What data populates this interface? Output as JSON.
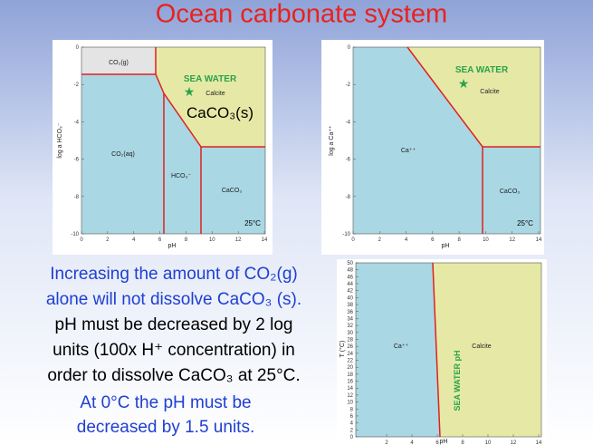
{
  "title": "Ocean carbonate system",
  "panel1": {
    "y_label": "log a HCO₃⁻",
    "x_label": "pH",
    "yticks": [
      0,
      -2,
      -4,
      -6,
      -8,
      -10
    ],
    "xticks": [
      0,
      2,
      4,
      6,
      8,
      10,
      12,
      14
    ],
    "regions": {
      "gas": "CO₂(g)",
      "aq": "CO₂(aq)",
      "bicarbonate": "HCO₃⁻",
      "carbonate": "CaCO₃",
      "calcite": "Calcite"
    },
    "sea_water": "SEA WATER",
    "solid_label": "CaCO₃(s)",
    "temperature": "25°C"
  },
  "panel2": {
    "y_label": "log a Ca⁺⁺",
    "x_label": "pH",
    "yticks": [
      0,
      -2,
      -4,
      -6,
      -8,
      -10
    ],
    "xticks": [
      0,
      2,
      4,
      6,
      8,
      10,
      12,
      14
    ],
    "regions": {
      "ion": "Ca⁺⁺",
      "carbonate": "CaCO₃",
      "calcite": "Calcite"
    },
    "sea_water": "SEA WATER",
    "temperature": "25°C"
  },
  "panel3": {
    "y_label": "T (°C)",
    "x_label": "pH",
    "yticks": [
      50,
      48,
      46,
      44,
      42,
      40,
      38,
      36,
      34,
      32,
      30,
      28,
      26,
      24,
      22,
      20,
      18,
      16,
      14,
      12,
      10,
      8,
      6,
      4,
      2,
      0
    ],
    "xticks": [
      2,
      4,
      6,
      8,
      10,
      12,
      14
    ],
    "regions": {
      "ion": "Ca⁺⁺",
      "calcite": "Calcite"
    },
    "sea_water": "SEA WATER pH"
  },
  "text": {
    "lines": [
      "Increasing the amount of CO₂(g)",
      "alone will not dissolve CaCO₃ (s).",
      "pH must be decreased by 2 log",
      "units (100x H⁺ concentration) in",
      "order to dissolve CaCO₃ at 25°C.",
      "At 0°C the pH must be",
      "decreased by 1.5 units."
    ]
  }
}
